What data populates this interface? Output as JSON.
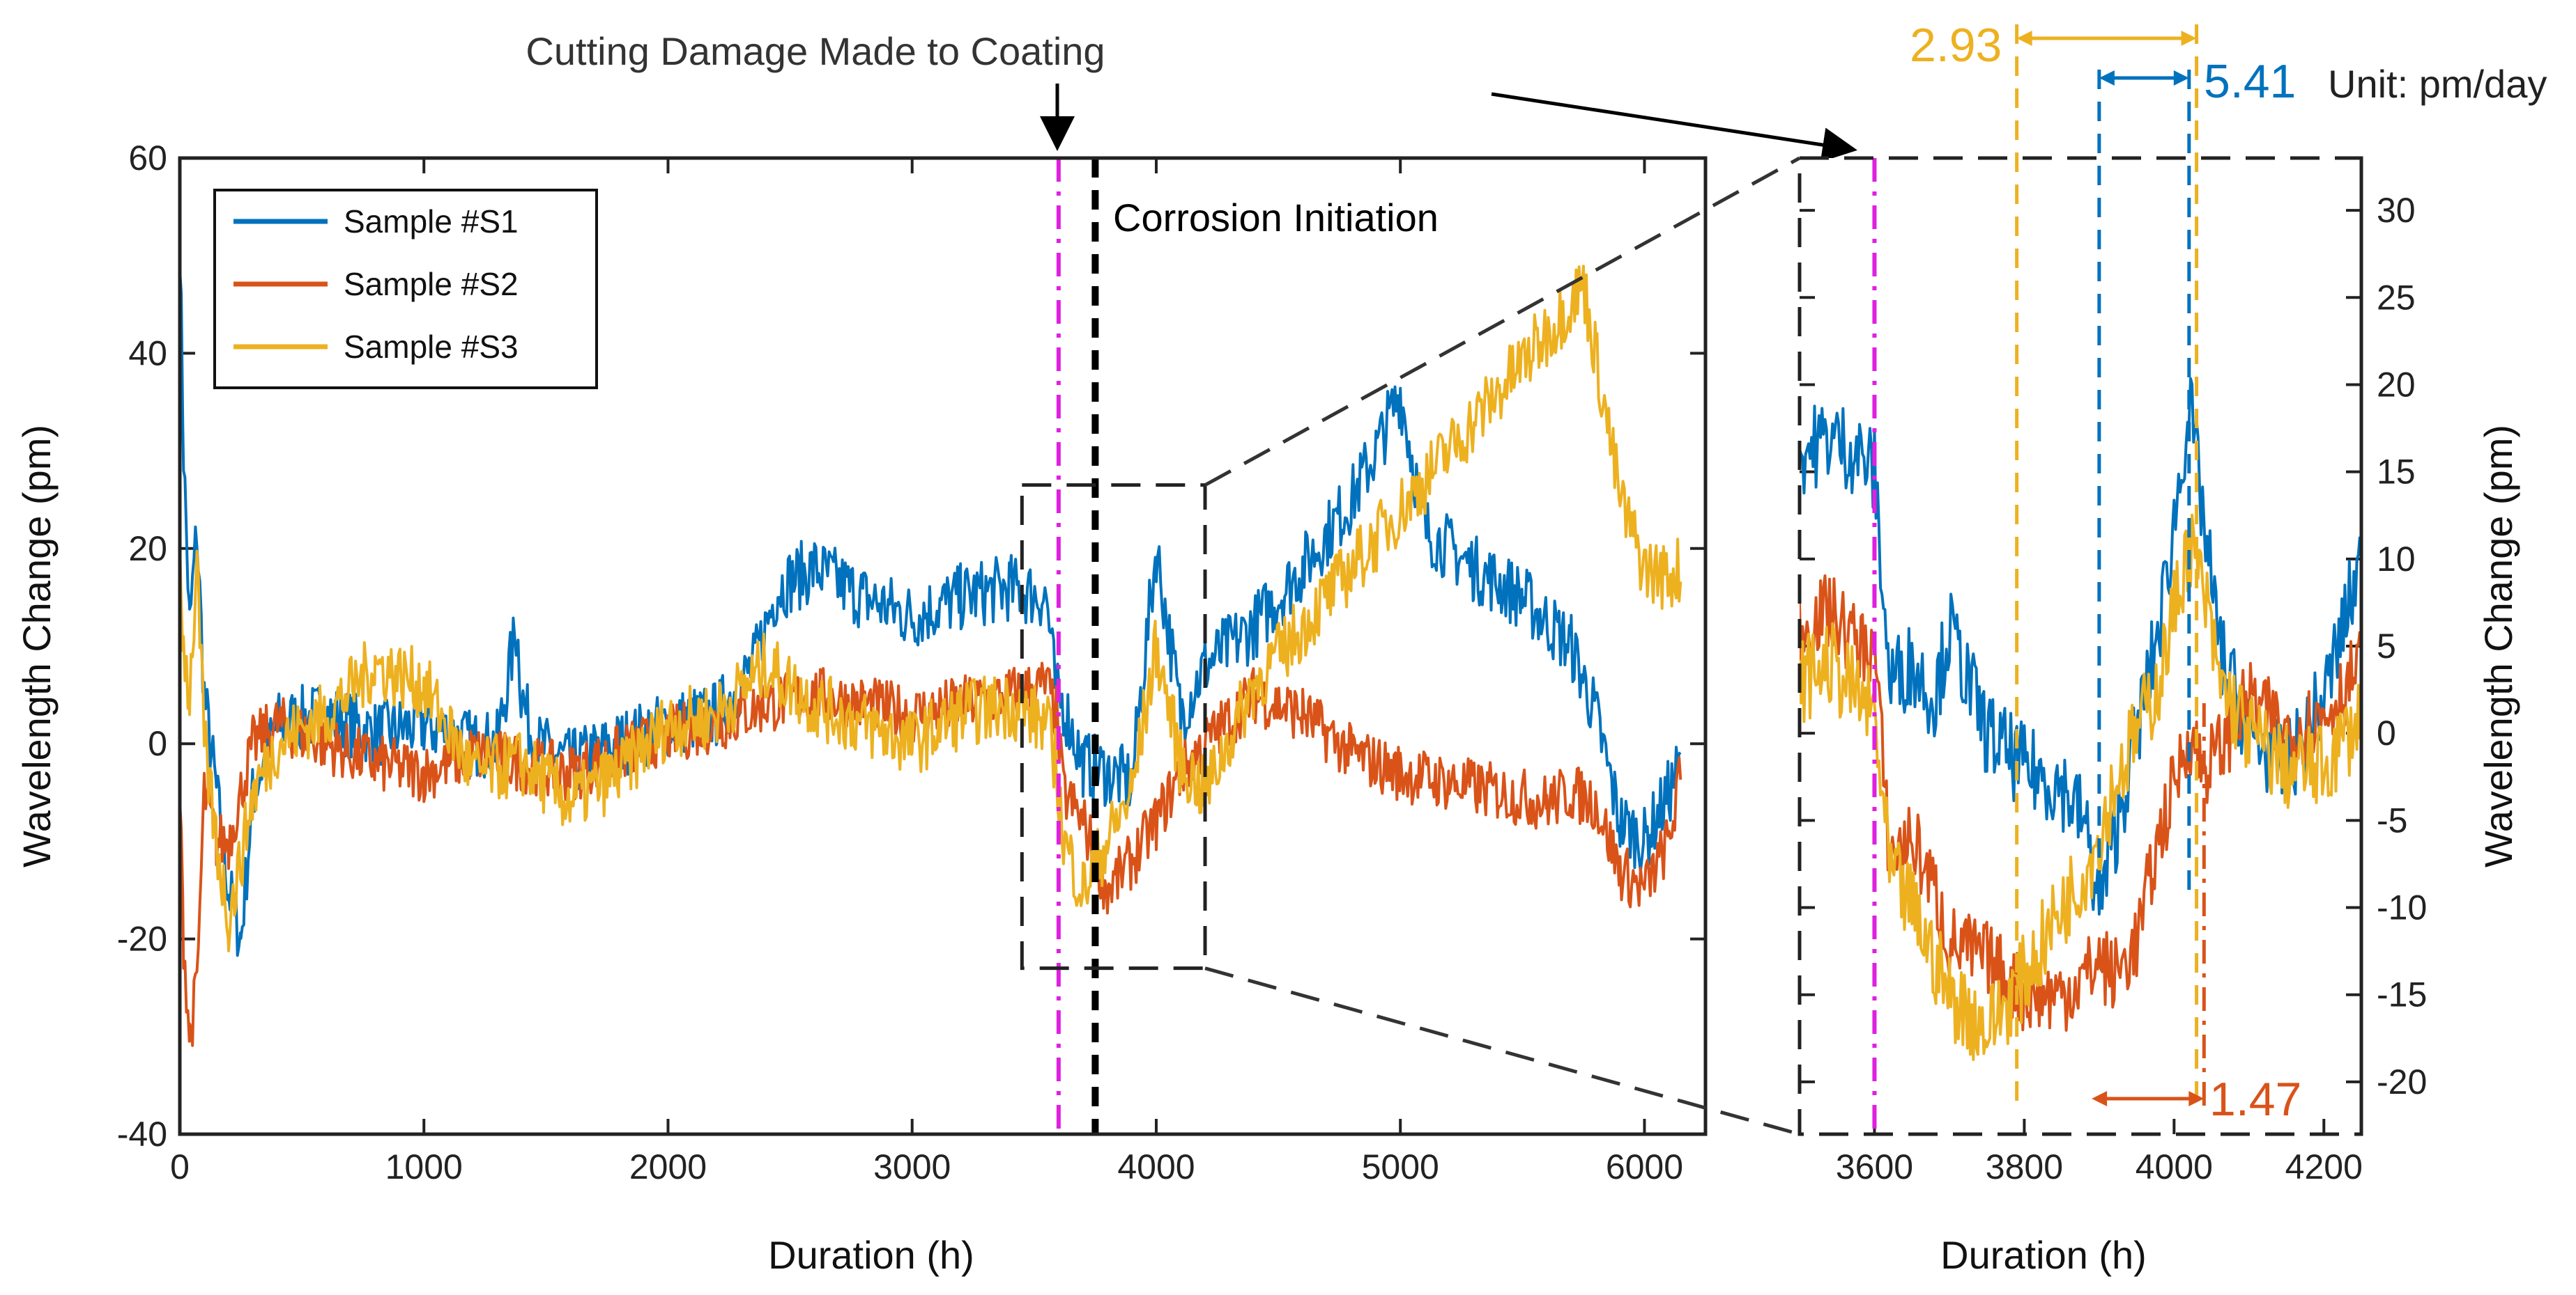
{
  "chart_data": [
    {
      "id": "main",
      "type": "line",
      "xlabel": "Duration (h)",
      "ylabel": "Wavelength Change (pm)",
      "xlim": [
        0,
        6250
      ],
      "ylim": [
        -40,
        60
      ],
      "xticks": [
        0,
        1000,
        2000,
        3000,
        4000,
        5000,
        6000
      ],
      "yticks": [
        -40,
        -20,
        0,
        20,
        40,
        60
      ],
      "legend_position": "top-left",
      "vlines": [
        {
          "x": 3600,
          "color": "#e020e0",
          "style": "dash-dot"
        },
        {
          "x": 3750,
          "color": "#000000",
          "style": "dashed"
        }
      ],
      "zoom_box": {
        "x": [
          3450,
          4200
        ],
        "y": [
          -23,
          26.5
        ]
      },
      "series": [
        {
          "name": "Sample #S1",
          "color": "#0072BD",
          "x": [
            0,
            15,
            40,
            70,
            100,
            150,
            200,
            250,
            300,
            400,
            600,
            800,
            1000,
            1200,
            1300,
            1380,
            1400,
            1450,
            1600,
            1800,
            2000,
            2200,
            2350,
            2450,
            2600,
            2800,
            3000,
            3200,
            3400,
            3550,
            3590,
            3620,
            3700,
            3800,
            3900,
            4000,
            4100,
            4200,
            4400,
            4600,
            4800,
            4900,
            5000,
            5100,
            5300,
            5500,
            5700,
            5800,
            5900,
            6000,
            6100,
            6150
          ],
          "y": [
            52,
            30,
            12,
            22,
            5,
            -5,
            -15,
            -20,
            -5,
            2,
            3,
            1,
            2,
            0,
            0,
            12,
            5,
            0,
            -2,
            0,
            2,
            3,
            8,
            16,
            18,
            15,
            13,
            15,
            16,
            15,
            5,
            4,
            -2,
            -3,
            -4,
            20,
            3,
            8,
            12,
            18,
            25,
            30,
            36,
            22,
            18,
            15,
            10,
            3,
            -8,
            -10,
            -5,
            -2
          ]
        },
        {
          "name": "Sample #S2",
          "color": "#D95319",
          "x": [
            0,
            15,
            40,
            70,
            100,
            150,
            200,
            250,
            300,
            400,
            600,
            800,
            1000,
            1200,
            1400,
            1600,
            1800,
            2000,
            2200,
            2400,
            2600,
            2800,
            3000,
            3200,
            3400,
            3550,
            3590,
            3620,
            3700,
            3800,
            3900,
            4000,
            4100,
            4200,
            4400,
            4600,
            4800,
            5000,
            5200,
            5400,
            5600,
            5700,
            5800,
            5900,
            6000,
            6100,
            6150
          ],
          "y": [
            -5,
            -20,
            -30,
            -25,
            -5,
            -10,
            -10,
            -5,
            0,
            2,
            0,
            -2,
            -3,
            -1,
            -2,
            -3,
            -1,
            1,
            2,
            4,
            5,
            4,
            3,
            4,
            5,
            6,
            3,
            -5,
            -8,
            -15,
            -12,
            -8,
            -3,
            0,
            5,
            3,
            -1,
            -3,
            -4,
            -5,
            -6,
            -5,
            -6,
            -13,
            -15,
            -10,
            -3
          ]
        },
        {
          "name": "Sample #S3",
          "color": "#EDB120",
          "x": [
            0,
            15,
            40,
            70,
            100,
            150,
            200,
            250,
            300,
            400,
            600,
            800,
            1000,
            1200,
            1400,
            1600,
            1800,
            2000,
            2200,
            2400,
            2600,
            2800,
            3000,
            3200,
            3400,
            3550,
            3590,
            3620,
            3700,
            3800,
            3900,
            4000,
            4100,
            4200,
            4400,
            4600,
            4800,
            5000,
            5200,
            5400,
            5600,
            5750,
            5800,
            5900,
            6000,
            6100,
            6150
          ],
          "y": [
            20,
            10,
            5,
            18,
            0,
            -10,
            -18,
            -12,
            -5,
            0,
            3,
            8,
            6,
            -3,
            -2,
            -6,
            -3,
            2,
            3,
            8,
            4,
            2,
            0,
            3,
            4,
            2,
            -2,
            -10,
            -15,
            -10,
            -5,
            10,
            -2,
            -5,
            6,
            12,
            18,
            24,
            30,
            36,
            42,
            47,
            40,
            25,
            18,
            17,
            18
          ]
        }
      ]
    },
    {
      "id": "zoom",
      "type": "line",
      "xlabel": "Duration (h)",
      "ylabel": "Wavelength Change (pm)",
      "xlim": [
        3500,
        4250
      ],
      "ylim": [
        -23,
        33
      ],
      "xticks": [
        3600,
        3800,
        4000,
        4200
      ],
      "yticks": [
        -20,
        -15,
        -10,
        -5,
        0,
        5,
        10,
        15,
        20,
        25,
        30
      ],
      "y_axis_side": "right",
      "vlines": [
        {
          "x": 3600,
          "color": "#e020e0",
          "style": "dash-dot"
        },
        {
          "x": 3790,
          "color": "#EDB120",
          "style": "dashed"
        },
        {
          "x": 3900,
          "color": "#0072BD",
          "style": "dashed"
        },
        {
          "x": 4020,
          "color": "#0072BD",
          "style": "dashed"
        },
        {
          "x": 4030,
          "color": "#EDB120",
          "style": "dashed"
        },
        {
          "x": 4040,
          "color": "#D95319",
          "style": "dash-dot"
        }
      ],
      "rates": [
        {
          "value": "2.93",
          "color": "#EDB120",
          "x_from": 3790,
          "x_to": 4030
        },
        {
          "value": "5.41",
          "color": "#0072BD",
          "x_from": 3900,
          "x_to": 4020
        },
        {
          "value": "1.47",
          "color": "#D95319",
          "x_from": 3890,
          "x_to": 4040
        }
      ],
      "series": [
        {
          "name": "Sample #S1",
          "color": "#0072BD",
          "x": [
            3500,
            3540,
            3580,
            3600,
            3620,
            3650,
            3680,
            3700,
            3750,
            3800,
            3850,
            3880,
            3900,
            3920,
            3950,
            3980,
            4000,
            4020,
            4040,
            4060,
            4100,
            4150,
            4200,
            4250
          ],
          "y": [
            16,
            17,
            16,
            15,
            3,
            4,
            2,
            6,
            0,
            -2,
            -3,
            -5,
            -10,
            -6,
            0,
            6,
            12,
            19,
            12,
            5,
            0,
            -2,
            2,
            10
          ]
        },
        {
          "name": "Sample #S2",
          "color": "#D95319",
          "x": [
            3500,
            3540,
            3580,
            3600,
            3620,
            3650,
            3680,
            3700,
            3750,
            3800,
            3850,
            3880,
            3900,
            3920,
            3950,
            3980,
            4000,
            4020,
            4040,
            4060,
            4100,
            4150,
            4200,
            4250
          ],
          "y": [
            6,
            7,
            5,
            5,
            -7,
            -6,
            -9,
            -12,
            -13,
            -15,
            -15,
            -14,
            -13,
            -14,
            -12,
            -6,
            -3,
            0,
            -2,
            -1,
            2,
            0,
            1,
            4
          ]
        },
        {
          "name": "Sample #S3",
          "color": "#EDB120",
          "x": [
            3500,
            3540,
            3580,
            3600,
            3620,
            3650,
            3680,
            3700,
            3750,
            3800,
            3850,
            3880,
            3900,
            3920,
            3950,
            3980,
            4000,
            4020,
            4040,
            4060,
            4100,
            4150,
            4200,
            4250
          ],
          "y": [
            3,
            4,
            2,
            1,
            -8,
            -10,
            -13,
            -15,
            -17,
            -14,
            -10,
            -8,
            -6,
            -3,
            0,
            3,
            7,
            11,
            8,
            3,
            0,
            -2,
            -2,
            1
          ]
        }
      ]
    }
  ],
  "annotations": {
    "cutting_damage": "Cutting Damage Made to Coating",
    "corrosion_initiation": "Corrosion Initiation",
    "unit": "Unit: pm/day"
  }
}
